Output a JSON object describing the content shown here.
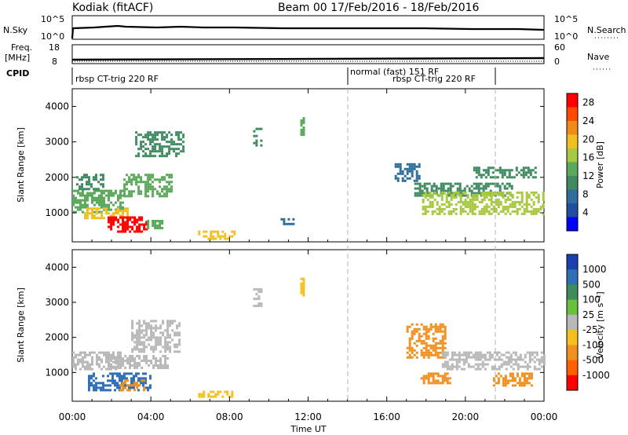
{
  "header": {
    "station": "Kodiak  (fitACF)",
    "beam_date": "Beam 00   17/Feb/2016 - 18/Feb/2016"
  },
  "sky_panel": {
    "left_label": "N.Sky",
    "right_label": "N.Search",
    "left_ticks": [
      "10^5",
      "10^0"
    ],
    "right_ticks": [
      "10^5",
      "10^0"
    ]
  },
  "freq_panel": {
    "label_line1": "Freq.",
    "label_line2": "[MHz]",
    "right_label": "Nave",
    "left_ticks": [
      "18",
      "8"
    ],
    "right_ticks": [
      "60",
      "0"
    ]
  },
  "cpid": {
    "label": "CPID",
    "modes": [
      "rbsp CT-trig 220 RF",
      "normal (fast) 151 RF",
      "rbsp CT-trig 220 RF"
    ]
  },
  "colors": {
    "power_scale": [
      "#0000ff",
      "#1f4fa0",
      "#2e6e9a",
      "#3f8a60",
      "#5aa85a",
      "#a8c840",
      "#f0c020",
      "#f08a18",
      "#ff4a00",
      "#ff0000"
    ],
    "velocity_scale": [
      "#1a3fb0",
      "#2f6fb5",
      "#3d8c5a",
      "#68c03c",
      "#b8b8b8",
      "#f4c020",
      "#f09020",
      "#ff6000",
      "#ff0000"
    ],
    "ground_scatter": "#b8b8b8"
  },
  "chart_data": [
    {
      "type": "heatmap",
      "panel": "power",
      "xlabel": "",
      "ylabel": "Slant Range [km]",
      "ylim": [
        180,
        4500
      ],
      "x_ticks": [
        "00:00",
        "04:00",
        "08:00",
        "12:00",
        "16:00",
        "20:00",
        "00:00"
      ],
      "y_ticks": [
        "1000",
        "2000",
        "3000",
        "4000"
      ],
      "colorbar": {
        "label": "Power [dB]",
        "ticks": [
          "4",
          "8",
          "12",
          "16",
          "20",
          "24",
          "28"
        ],
        "range": [
          0,
          30
        ]
      },
      "regions": [
        {
          "t0": 0.0,
          "t1": 2.6,
          "r0": 1050,
          "r1": 1650,
          "value": 12
        },
        {
          "t0": 0.6,
          "t1": 2.8,
          "r0": 850,
          "r1": 1150,
          "value": 18
        },
        {
          "t0": 1.8,
          "t1": 3.8,
          "r0": 500,
          "r1": 900,
          "value": 27
        },
        {
          "t0": 2.6,
          "t1": 5.0,
          "r0": 1500,
          "r1": 2100,
          "value": 13
        },
        {
          "t0": 3.2,
          "t1": 5.6,
          "r0": 2600,
          "r1": 3300,
          "value": 11
        },
        {
          "t0": 0.2,
          "t1": 1.6,
          "r0": 1700,
          "r1": 2100,
          "value": 10
        },
        {
          "t0": 3.8,
          "t1": 4.6,
          "r0": 600,
          "r1": 800,
          "value": 14
        },
        {
          "t0": 6.4,
          "t1": 8.2,
          "r0": 300,
          "r1": 500,
          "value": 20
        },
        {
          "t0": 9.2,
          "t1": 9.6,
          "r0": 2900,
          "r1": 3400,
          "value": 10
        },
        {
          "t0": 10.6,
          "t1": 11.2,
          "r0": 700,
          "r1": 850,
          "value": 8
        },
        {
          "t0": 11.6,
          "t1": 11.8,
          "r0": 3200,
          "r1": 3700,
          "value": 14
        },
        {
          "t0": 16.4,
          "t1": 17.6,
          "r0": 1900,
          "r1": 2400,
          "value": 8
        },
        {
          "t0": 17.4,
          "t1": 22.4,
          "r0": 1500,
          "r1": 1850,
          "value": 10
        },
        {
          "t0": 17.8,
          "t1": 24.0,
          "r0": 1000,
          "r1": 1600,
          "value": 15
        },
        {
          "t0": 20.4,
          "t1": 23.6,
          "r0": 2000,
          "r1": 2300,
          "value": 9
        }
      ]
    },
    {
      "type": "heatmap",
      "panel": "velocity",
      "xlabel": "Time UT",
      "ylabel": "Slant Range [km]",
      "ylim": [
        180,
        4500
      ],
      "x_ticks": [
        "00:00",
        "04:00",
        "08:00",
        "12:00",
        "16:00",
        "20:00",
        "00:00"
      ],
      "y_ticks": [
        "1000",
        "2000",
        "3000",
        "4000"
      ],
      "colorbar": {
        "label": "Velocity [m s⁻¹]",
        "ticks": [
          "1000",
          "500",
          "100",
          "25",
          "-25",
          "-100",
          "-500",
          "-1000"
        ]
      },
      "regions": [
        {
          "t0": 0.0,
          "t1": 2.4,
          "r0": 1100,
          "r1": 1600,
          "kind": "ground"
        },
        {
          "t0": 1.8,
          "t1": 4.8,
          "r0": 1100,
          "r1": 1500,
          "kind": "ground"
        },
        {
          "t0": 3.0,
          "t1": 5.4,
          "r0": 1600,
          "r1": 2500,
          "kind": "ground"
        },
        {
          "t0": 0.8,
          "t1": 4.0,
          "r0": 500,
          "r1": 1000,
          "value": 150
        },
        {
          "t0": 2.4,
          "t1": 3.6,
          "r0": 500,
          "r1": 800,
          "value": -120
        },
        {
          "t0": 6.4,
          "t1": 8.2,
          "r0": 280,
          "r1": 480,
          "value": -60
        },
        {
          "t0": 9.2,
          "t1": 9.6,
          "r0": 2900,
          "r1": 3400,
          "kind": "ground"
        },
        {
          "t0": 11.6,
          "t1": 11.8,
          "r0": 3200,
          "r1": 3700,
          "value": -60
        },
        {
          "t0": 17.0,
          "t1": 19.0,
          "r0": 1400,
          "r1": 2400,
          "value": -120
        },
        {
          "t0": 18.8,
          "t1": 24.0,
          "r0": 1100,
          "r1": 1600,
          "kind": "ground"
        },
        {
          "t0": 21.4,
          "t1": 23.4,
          "r0": 600,
          "r1": 1000,
          "value": -150
        },
        {
          "t0": 17.6,
          "t1": 19.2,
          "r0": 700,
          "r1": 1000,
          "value": -120
        }
      ]
    }
  ]
}
